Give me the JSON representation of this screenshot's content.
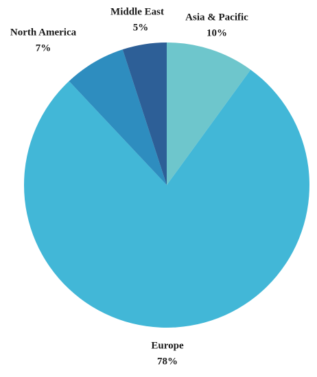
{
  "chart_data": {
    "type": "pie",
    "categories": [
      "Asia & Pacific",
      "Europe",
      "North America",
      "Middle East"
    ],
    "values": [
      10,
      78,
      7,
      5
    ],
    "value_labels": [
      "10%",
      "78%",
      "7%",
      "5%"
    ],
    "colors": [
      "#6ec6cc",
      "#42b7d7",
      "#2e8dbf",
      "#2d5f97"
    ]
  }
}
